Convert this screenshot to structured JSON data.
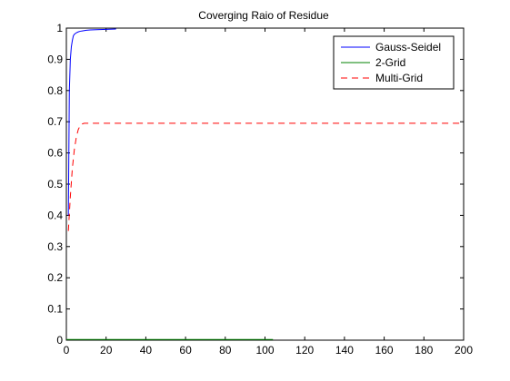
{
  "chart_data": {
    "type": "line",
    "title": "Coverging Raio of Residue",
    "xlabel": "",
    "ylabel": "",
    "xlim": [
      0,
      200
    ],
    "ylim": [
      0,
      1
    ],
    "xticks": [
      0,
      20,
      40,
      60,
      80,
      100,
      120,
      140,
      160,
      180,
      200
    ],
    "yticks": [
      0,
      0.1,
      0.2,
      0.3,
      0.4,
      0.5,
      0.6,
      0.7,
      0.8,
      0.9,
      1
    ],
    "grid": false,
    "legend_position": "top-right",
    "series": [
      {
        "name": "Gauss-Seidel",
        "color": "#0000ff",
        "dash": "solid",
        "x": [
          1,
          1.5,
          2,
          2.5,
          3,
          3.5,
          4,
          5,
          6,
          7,
          8,
          10,
          12,
          15,
          20,
          25
        ],
        "y": [
          0.4,
          0.8,
          0.9,
          0.94,
          0.96,
          0.975,
          0.98,
          0.985,
          0.988,
          0.99,
          0.991,
          0.993,
          0.994,
          0.995,
          0.996,
          0.997
        ]
      },
      {
        "name": "2-Grid",
        "color": "#008000",
        "dash": "solid",
        "x": [
          0,
          20,
          40,
          60,
          80,
          100,
          104
        ],
        "y": [
          0.002,
          0.002,
          0.002,
          0.002,
          0.002,
          0.002,
          0.002
        ]
      },
      {
        "name": "Multi-Grid",
        "color": "#ff0000",
        "dash": "dashed",
        "x": [
          1,
          2,
          3,
          4,
          5,
          6,
          7,
          8,
          9,
          10,
          20,
          50,
          100,
          150,
          200
        ],
        "y": [
          0.35,
          0.46,
          0.55,
          0.61,
          0.65,
          0.675,
          0.688,
          0.693,
          0.695,
          0.695,
          0.695,
          0.695,
          0.695,
          0.695,
          0.695
        ]
      }
    ]
  }
}
